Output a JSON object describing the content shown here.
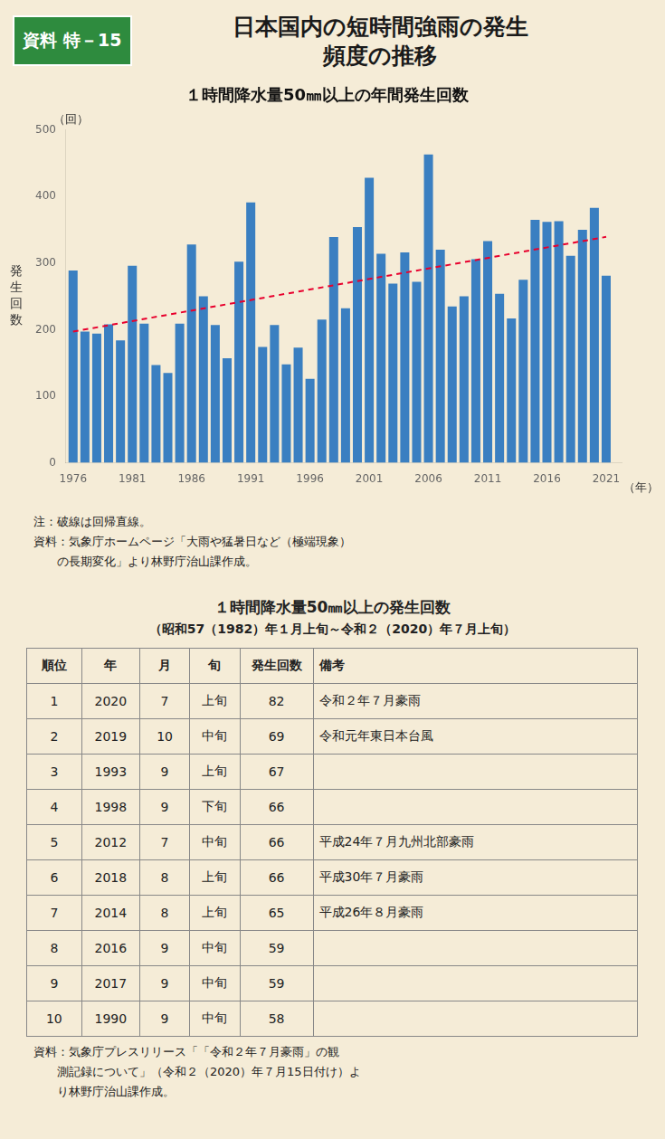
{
  "background": "#f5ecd7",
  "header_box": {
    "text": "資料 特－15",
    "color": "#2e8b3e"
  },
  "page_title": [
    "日本国内の短時間強雨の発生",
    "頻度の推移"
  ],
  "chart_data": {
    "type": "bar",
    "title": "１時間降水量50㎜以上の年間発生回数",
    "xlabel": "（年）",
    "ylabel": "発生回数",
    "annotations": [
      "（回）"
    ],
    "xlim": [
      1975.4,
      2022.3
    ],
    "xticks": [
      1976,
      1981,
      1986,
      1991,
      1996,
      2001,
      2006,
      2011,
      2016,
      2021
    ],
    "ylim": [
      0,
      500
    ],
    "yticks": [
      0,
      100,
      200,
      300,
      400,
      500
    ],
    "grid": false,
    "series": [
      {
        "type": "bar",
        "color": "#3a7fc1",
        "x": [
          1976,
          1977,
          1978,
          1979,
          1980,
          1981,
          1982,
          1983,
          1984,
          1985,
          1986,
          1987,
          1988,
          1989,
          1990,
          1991,
          1992,
          1993,
          1994,
          1995,
          1996,
          1997,
          1998,
          1999,
          2000,
          2001,
          2002,
          2003,
          2004,
          2005,
          2006,
          2007,
          2008,
          2009,
          2010,
          2011,
          2012,
          2013,
          2014,
          2015,
          2016,
          2017,
          2018,
          2019,
          2020,
          2021
        ],
        "values": [
          289,
          197,
          194,
          208,
          184,
          296,
          209,
          147,
          135,
          209,
          328,
          250,
          207,
          157,
          302,
          391,
          174,
          207,
          148,
          173,
          126,
          215,
          339,
          232,
          354,
          428,
          314,
          269,
          316,
          272,
          463,
          320,
          235,
          250,
          306,
          333,
          254,
          217,
          275,
          365,
          362,
          363,
          311,
          350,
          383,
          281
        ]
      },
      {
        "type": "line",
        "color": "#e8002d",
        "line_style": "dashed",
        "x": [
          1976,
          2021
        ],
        "values": [
          197.108,
          339.327
        ]
      }
    ]
  },
  "notes": [
    "注：破線は回帰直線。",
    "資料：気象庁ホームページ「大雨や猛暑日など（極端現象）",
    "　　の長期変化」より林野庁治山課作成。"
  ],
  "table": {
    "title": [
      "１時間降水量50㎜以上の発生回数",
      "（昭和57（1982）年１月上旬～令和２（2020）年７月上旬）"
    ],
    "headers": [
      "順位",
      "年",
      "月",
      "旬",
      "発生回数",
      "備考"
    ],
    "rows": [
      [
        "1",
        "2020",
        "7",
        "上旬",
        "82",
        "令和２年７月豪雨"
      ],
      [
        "2",
        "2019",
        "10",
        "中旬",
        "69",
        "令和元年東日本台風"
      ],
      [
        "3",
        "1993",
        "9",
        "上旬",
        "67",
        null
      ],
      [
        "4",
        "1998",
        "9",
        "下旬",
        "66",
        null
      ],
      [
        "5",
        "2012",
        "7",
        "中旬",
        "66",
        "平成24年７月九州北部豪雨"
      ],
      [
        "6",
        "2018",
        "8",
        "上旬",
        "66",
        "平成30年７月豪雨"
      ],
      [
        "7",
        "2014",
        "8",
        "上旬",
        "65",
        "平成26年８月豪雨"
      ],
      [
        "8",
        "2016",
        "9",
        "中旬",
        "59",
        null
      ],
      [
        "9",
        "2017",
        "9",
        "中旬",
        "59",
        null
      ],
      [
        "10",
        "1990",
        "9",
        "中旬",
        "58",
        null
      ]
    ]
  },
  "footer_notes": [
    "資料：気象庁プレスリリース「「令和２年７月豪雨」の観",
    "　　測記録について」（令和２（2020）年７月15日付け）よ",
    "　　り林野庁治山課作成。"
  ]
}
